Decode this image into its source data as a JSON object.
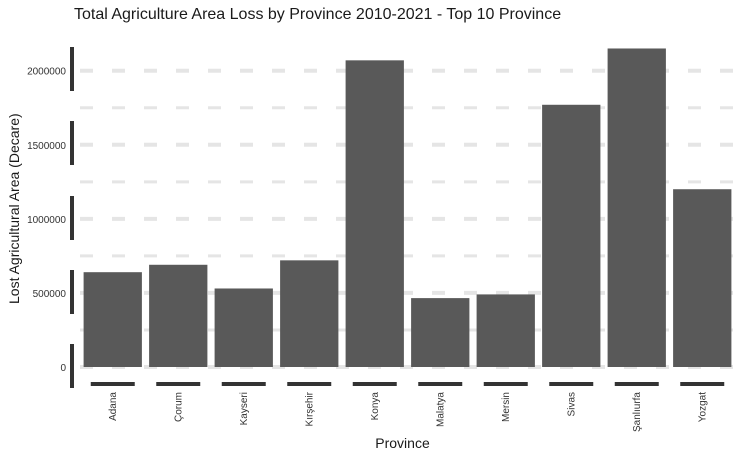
{
  "chart_data": {
    "type": "bar",
    "title": "Total Agriculture Area Loss by Province 2010-2021 - Top 10 Province",
    "xlabel": "Province",
    "ylabel": "Lost Agricultural Area (Decare)",
    "categories": [
      "Adana",
      "Çorum",
      "Kayseri",
      "Kırşehir",
      "Konya",
      "Malatya",
      "Mersin",
      "Sivas",
      "Şanlıurfa",
      "Yozgat"
    ],
    "values": [
      640000,
      690000,
      530000,
      720000,
      2070000,
      465000,
      490000,
      1770000,
      2150000,
      1200000
    ],
    "ylim": [
      0,
      2160000
    ],
    "yticks": [
      0,
      500000,
      1000000,
      1500000,
      2000000
    ],
    "ytick_labels": [
      "0",
      "500000",
      "1000000",
      "1500000",
      "2000000"
    ],
    "grid": true,
    "bar_color": "#595959",
    "grid_color": "#e5e5e5"
  }
}
